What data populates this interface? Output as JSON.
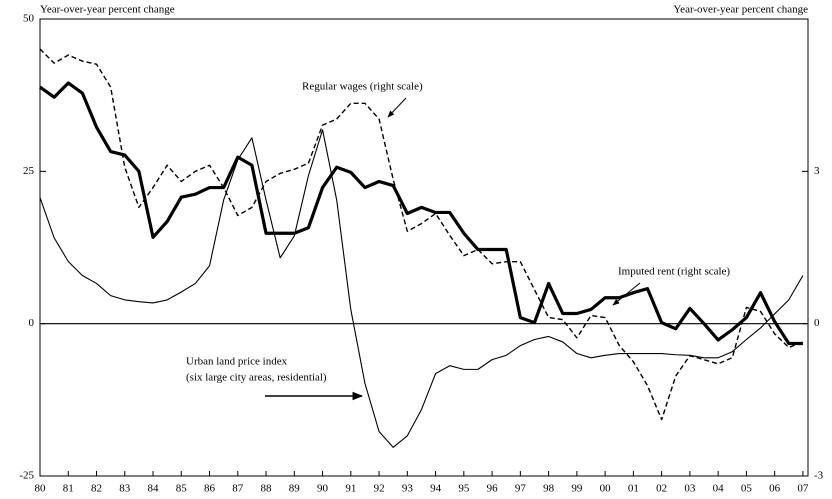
{
  "chart_data": {
    "type": "line",
    "y_label": "Year-over-year percent change",
    "y2_label": "Year-over-year percent change",
    "x": [
      1980,
      1980.5,
      1981,
      1981.5,
      1982,
      1982.5,
      1983,
      1983.5,
      1984,
      1984.5,
      1985,
      1985.5,
      1986,
      1986.5,
      1987,
      1987.5,
      1988,
      1988.5,
      1989,
      1989.5,
      1990,
      1990.5,
      1991,
      1991.5,
      1992,
      1992.5,
      1993,
      1993.5,
      1994,
      1994.5,
      1995,
      1995.5,
      1996,
      1996.5,
      1997,
      1997.5,
      1998,
      1998.5,
      1999,
      1999.5,
      2000,
      2000.5,
      2001,
      2001.5,
      2002,
      2002.5,
      2003,
      2003.5,
      2004,
      2004.5,
      2005,
      2005.5,
      2006,
      2006.5,
      2007
    ],
    "xlim": [
      1980,
      2007.18
    ],
    "xticks": [
      {
        "value": 1980,
        "label": "80"
      },
      {
        "value": 1981,
        "label": "81"
      },
      {
        "value": 1982,
        "label": "82"
      },
      {
        "value": 1983,
        "label": "83"
      },
      {
        "value": 1984,
        "label": "84"
      },
      {
        "value": 1985,
        "label": "85"
      },
      {
        "value": 1986,
        "label": "86"
      },
      {
        "value": 1987,
        "label": "87"
      },
      {
        "value": 1988,
        "label": "88"
      },
      {
        "value": 1989,
        "label": "89"
      },
      {
        "value": 1990,
        "label": "90"
      },
      {
        "value": 1991,
        "label": "91"
      },
      {
        "value": 1992,
        "label": "92"
      },
      {
        "value": 1993,
        "label": "93"
      },
      {
        "value": 1994,
        "label": "94"
      },
      {
        "value": 1995,
        "label": "95"
      },
      {
        "value": 1996,
        "label": "96"
      },
      {
        "value": 1997,
        "label": "97"
      },
      {
        "value": 1998,
        "label": "98"
      },
      {
        "value": 1999,
        "label": "99"
      },
      {
        "value": 2000,
        "label": "00"
      },
      {
        "value": 2001,
        "label": "01"
      },
      {
        "value": 2002,
        "label": "02"
      },
      {
        "value": 2003,
        "label": "03"
      },
      {
        "value": 2004,
        "label": "04"
      },
      {
        "value": 2005,
        "label": "05"
      },
      {
        "value": 2006,
        "label": "06"
      },
      {
        "value": 2007,
        "label": "07"
      }
    ],
    "ylim": [
      -25,
      50
    ],
    "yticks": [
      -25,
      0,
      25,
      50
    ],
    "y2lim": [
      -3,
      6
    ],
    "y2ticks": [
      -3,
      0,
      3
    ],
    "series": [
      {
        "name": "Imputed rent (right scale)",
        "color": "#000000",
        "axis": "y2",
        "width": 3.2,
        "dashed": false,
        "values": [
          4.66,
          4.46,
          4.74,
          4.54,
          3.87,
          3.39,
          3.32,
          3.0,
          1.7,
          2.01,
          2.49,
          2.55,
          2.68,
          2.68,
          3.28,
          3.12,
          1.78,
          1.78,
          1.78,
          1.89,
          2.68,
          3.08,
          2.98,
          2.68,
          2.8,
          2.72,
          2.17,
          2.29,
          2.19,
          2.19,
          1.78,
          1.46,
          1.46,
          1.46,
          0.12,
          0.02,
          0.79,
          0.2,
          0.2,
          0.28,
          0.51,
          0.51,
          0.61,
          0.69,
          0.02,
          -0.1,
          0.3,
          0,
          -0.32,
          -0.12,
          0.12,
          0.61,
          0.04,
          -0.39,
          -0.39
        ]
      },
      {
        "name": "Regular wages (right scale)",
        "color": "#000000",
        "axis": "y2",
        "width": 1.4,
        "dashed": true,
        "values": [
          5.41,
          5.13,
          5.29,
          5.17,
          5.11,
          4.66,
          3.08,
          2.29,
          2.68,
          3.12,
          2.8,
          3.0,
          3.12,
          2.68,
          2.13,
          2.29,
          2.8,
          2.96,
          3.04,
          3.16,
          3.91,
          4.03,
          4.34,
          4.34,
          4.03,
          2.84,
          1.82,
          1.97,
          2.17,
          1.74,
          1.34,
          1.46,
          1.18,
          1.22,
          1.22,
          0.67,
          0.12,
          0.08,
          -0.28,
          0.16,
          0.12,
          -0.43,
          -0.75,
          -1.22,
          -1.89,
          -1.03,
          -0.63,
          -0.71,
          -0.79,
          -0.67,
          0.32,
          0.24,
          -0.2,
          -0.47,
          -0.36
        ]
      },
      {
        "name": "Urban land price index",
        "subname": "(six large city areas, residential)",
        "color": "#000000",
        "axis": "y",
        "width": 1.1,
        "dashed": false,
        "values": [
          20.7,
          14.1,
          10.2,
          7.9,
          6.6,
          4.6,
          3.9,
          3.6,
          3.4,
          3.9,
          5.2,
          6.6,
          9.5,
          20.3,
          26.9,
          30.5,
          20.3,
          10.8,
          14.4,
          24.3,
          31.8,
          20.3,
          2.3,
          -9.8,
          -17.7,
          -20.3,
          -18.4,
          -14.1,
          -8.2,
          -6.9,
          -7.5,
          -7.5,
          -5.9,
          -5.2,
          -3.6,
          -2.6,
          -2.1,
          -3.0,
          -4.9,
          -5.6,
          -5.2,
          -4.9,
          -4.9,
          -4.9,
          -4.9,
          -5.1,
          -5.2,
          -5.6,
          -5.6,
          -4.6,
          -2.6,
          -0.7,
          1.6,
          3.9,
          7.9
        ]
      }
    ]
  }
}
